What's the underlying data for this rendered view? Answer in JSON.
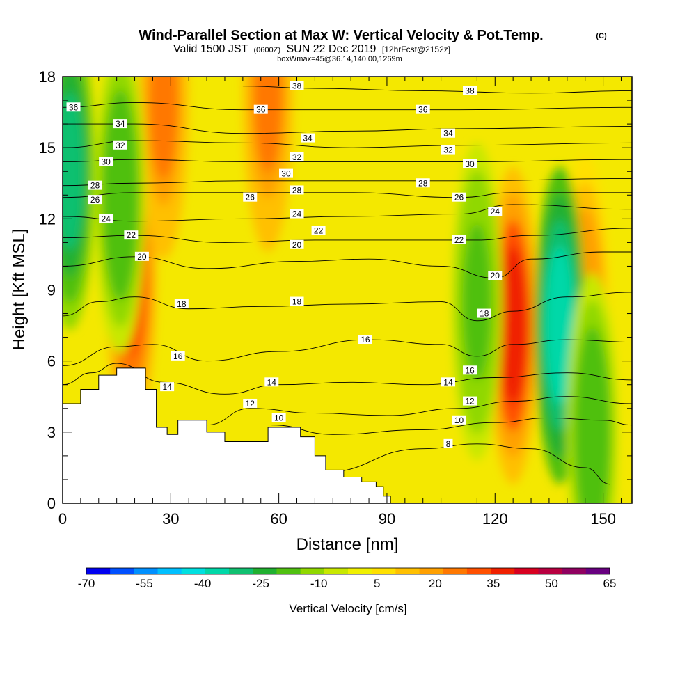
{
  "title": {
    "main": "Wind-Parallel Section at Max W: Vertical Velocity & Pot.Temp.",
    "copyright": "(C)",
    "valid_prefix": "Valid 1500 JST",
    "valid_utc": "(0600Z)",
    "valid_date": "SUN 22 Dec 2019",
    "forecast": "[12hrFcst@2152z]",
    "box_info": "boxWmax=45@36.14,140.00,1269m"
  },
  "chart_data": {
    "type": "heatmap",
    "xlabel": "Distance [nm]",
    "ylabel": "Height [Kft MSL]",
    "xlim": [
      0,
      158
    ],
    "ylim": [
      0,
      18
    ],
    "x_ticks": [
      0,
      30,
      60,
      90,
      120,
      150
    ],
    "y_ticks": [
      0,
      3,
      6,
      9,
      12,
      15,
      18
    ],
    "grid": false,
    "colorbar": {
      "label": "Vertical Velocity [cm/s]",
      "placement": "bottom",
      "tick_labels": [
        "-70",
        "-55",
        "-40",
        "-25",
        "-10",
        "5",
        "20",
        "35",
        "50",
        "65"
      ],
      "colors": [
        "#0000f0",
        "#0050ff",
        "#0090ff",
        "#00c0ff",
        "#00e0e0",
        "#00d8a8",
        "#10c070",
        "#20b030",
        "#50c010",
        "#90d800",
        "#c8e800",
        "#f0f000",
        "#ffe000",
        "#ffc000",
        "#ffa000",
        "#ff7800",
        "#ff5000",
        "#f02000",
        "#d80020",
        "#b80040",
        "#900060",
        "#680080"
      ]
    },
    "terrain_kft": [
      [
        0,
        4.2
      ],
      [
        5,
        4.8
      ],
      [
        10,
        5.4
      ],
      [
        15,
        5.7
      ],
      [
        20,
        5.7
      ],
      [
        23,
        4.8
      ],
      [
        26,
        3.2
      ],
      [
        29,
        2.9
      ],
      [
        32,
        3.5
      ],
      [
        36,
        3.5
      ],
      [
        40,
        3.0
      ],
      [
        45,
        2.6
      ],
      [
        50,
        2.6
      ],
      [
        55,
        2.6
      ],
      [
        57,
        3.2
      ],
      [
        62,
        3.2
      ],
      [
        66,
        2.8
      ],
      [
        70,
        2.0
      ],
      [
        73,
        1.4
      ],
      [
        78,
        1.1
      ],
      [
        83,
        0.9
      ],
      [
        87,
        0.7
      ],
      [
        89,
        0.3
      ],
      [
        91,
        0.3
      ]
    ],
    "updraft_cores": [
      {
        "x": 19,
        "y": 9.5,
        "w_cm_s": 40
      },
      {
        "x": 28,
        "y": 17.0,
        "w_cm_s": 30
      },
      {
        "x": 57,
        "y": 17.3,
        "w_cm_s": 30
      },
      {
        "x": 125,
        "y": 7.5,
        "w_cm_s": 45
      },
      {
        "x": 145,
        "y": 8.0,
        "w_cm_s": 25
      }
    ],
    "downdraft_cores": [
      {
        "x": 2,
        "y": 14.0,
        "w_cm_s": -40
      },
      {
        "x": 16,
        "y": 13.0,
        "w_cm_s": -25
      },
      {
        "x": 115,
        "y": 8.5,
        "w_cm_s": -20
      },
      {
        "x": 138,
        "y": 7.5,
        "w_cm_s": -45
      },
      {
        "x": 147,
        "y": 3.0,
        "w_cm_s": -25
      }
    ],
    "theta_contours": [
      {
        "label": "8",
        "level": 8,
        "points": [
          [
            72,
            1.3
          ],
          [
            100,
            2.3
          ],
          [
            115,
            2.5
          ],
          [
            130,
            2.3
          ],
          [
            145,
            1.5
          ],
          [
            152,
            0.8
          ]
        ]
      },
      {
        "label": "10",
        "level": 10,
        "points": [
          [
            58,
            3.3
          ],
          [
            75,
            2.9
          ],
          [
            100,
            3.1
          ],
          [
            120,
            3.4
          ],
          [
            135,
            3.6
          ],
          [
            150,
            3.5
          ],
          [
            158,
            3.3
          ]
        ]
      },
      {
        "label": "12",
        "level": 12,
        "points": [
          [
            40,
            3.3
          ],
          [
            52,
            4.0
          ],
          [
            70,
            3.8
          ],
          [
            90,
            3.7
          ],
          [
            110,
            4.0
          ],
          [
            125,
            4.3
          ],
          [
            140,
            4.5
          ],
          [
            158,
            4.2
          ]
        ]
      },
      {
        "label": "14",
        "level": 14,
        "points": [
          [
            0,
            5.0
          ],
          [
            8,
            5.5
          ],
          [
            15,
            5.9
          ],
          [
            28,
            5.1
          ],
          [
            45,
            4.6
          ],
          [
            60,
            5.0
          ],
          [
            80,
            5.1
          ],
          [
            100,
            5.0
          ],
          [
            120,
            5.3
          ],
          [
            140,
            5.5
          ],
          [
            158,
            5.2
          ]
        ]
      },
      {
        "label": "16",
        "level": 16,
        "points": [
          [
            0,
            5.8
          ],
          [
            15,
            6.6
          ],
          [
            25,
            6.7
          ],
          [
            40,
            6.0
          ],
          [
            60,
            6.4
          ],
          [
            85,
            6.9
          ],
          [
            105,
            6.7
          ],
          [
            115,
            6.2
          ],
          [
            125,
            6.7
          ],
          [
            140,
            6.9
          ],
          [
            158,
            6.8
          ]
        ]
      },
      {
        "label": "18",
        "level": 18,
        "points": [
          [
            0,
            7.9
          ],
          [
            10,
            8.5
          ],
          [
            20,
            8.7
          ],
          [
            35,
            8.2
          ],
          [
            55,
            8.3
          ],
          [
            80,
            8.4
          ],
          [
            105,
            8.5
          ],
          [
            115,
            7.7
          ],
          [
            125,
            8.1
          ],
          [
            140,
            8.7
          ],
          [
            158,
            8.9
          ]
        ]
      },
      {
        "label": "20",
        "level": 20,
        "points": [
          [
            0,
            10.0
          ],
          [
            20,
            10.4
          ],
          [
            40,
            9.9
          ],
          [
            65,
            10.2
          ],
          [
            85,
            10.3
          ],
          [
            105,
            10.0
          ],
          [
            120,
            9.5
          ],
          [
            130,
            10.3
          ],
          [
            150,
            10.6
          ],
          [
            158,
            10.6
          ]
        ]
      },
      {
        "label": "22",
        "level": 22,
        "points": [
          [
            0,
            11.2
          ],
          [
            20,
            11.3
          ],
          [
            45,
            11.0
          ],
          [
            70,
            11.1
          ],
          [
            95,
            11.1
          ],
          [
            115,
            11.1
          ],
          [
            130,
            11.3
          ],
          [
            158,
            11.6
          ]
        ]
      },
      {
        "label": "24",
        "level": 24,
        "points": [
          [
            0,
            12.1
          ],
          [
            20,
            11.9
          ],
          [
            50,
            12.0
          ],
          [
            80,
            12.1
          ],
          [
            110,
            12.2
          ],
          [
            125,
            12.6
          ],
          [
            158,
            12.4
          ]
        ]
      },
      {
        "label": "26",
        "level": 26,
        "points": [
          [
            0,
            12.9
          ],
          [
            20,
            13.1
          ],
          [
            50,
            13.1
          ],
          [
            80,
            13.1
          ],
          [
            110,
            12.9
          ],
          [
            125,
            13.1
          ],
          [
            158,
            13.1
          ]
        ]
      },
      {
        "label": "28",
        "level": 28,
        "points": [
          [
            0,
            13.4
          ],
          [
            20,
            13.5
          ],
          [
            50,
            13.6
          ],
          [
            80,
            13.6
          ],
          [
            110,
            13.6
          ],
          [
            158,
            13.7
          ]
        ]
      },
      {
        "label": "30",
        "level": 30,
        "points": [
          [
            0,
            14.4
          ],
          [
            20,
            14.5
          ],
          [
            50,
            14.4
          ],
          [
            80,
            14.4
          ],
          [
            110,
            14.4
          ],
          [
            158,
            14.5
          ]
        ]
      },
      {
        "label": "32",
        "level": 32,
        "points": [
          [
            0,
            15.0
          ],
          [
            20,
            15.3
          ],
          [
            50,
            15.2
          ],
          [
            80,
            15.0
          ],
          [
            110,
            15.1
          ],
          [
            158,
            15.2
          ]
        ]
      },
      {
        "label": "34",
        "level": 34,
        "points": [
          [
            0,
            16.0
          ],
          [
            20,
            16.0
          ],
          [
            50,
            15.6
          ],
          [
            80,
            15.7
          ],
          [
            110,
            15.8
          ],
          [
            158,
            15.9
          ]
        ]
      },
      {
        "label": "36",
        "level": 36,
        "points": [
          [
            0,
            16.7
          ],
          [
            20,
            16.9
          ],
          [
            50,
            16.6
          ],
          [
            80,
            16.6
          ],
          [
            110,
            16.6
          ],
          [
            158,
            16.7
          ]
        ]
      },
      {
        "label": "38",
        "level": 38,
        "points": [
          [
            50,
            17.6
          ],
          [
            70,
            17.5
          ],
          [
            100,
            17.4
          ],
          [
            130,
            17.3
          ],
          [
            158,
            17.4
          ]
        ]
      }
    ],
    "contour_labels": [
      {
        "text": "36",
        "x": 3,
        "y": 16.7
      },
      {
        "text": "34",
        "x": 16,
        "y": 16.0
      },
      {
        "text": "32",
        "x": 16,
        "y": 15.1
      },
      {
        "text": "30",
        "x": 12,
        "y": 14.4
      },
      {
        "text": "28",
        "x": 9,
        "y": 13.4
      },
      {
        "text": "26",
        "x": 9,
        "y": 12.8
      },
      {
        "text": "24",
        "x": 12,
        "y": 12.0
      },
      {
        "text": "22",
        "x": 19,
        "y": 11.3
      },
      {
        "text": "20",
        "x": 22,
        "y": 10.4
      },
      {
        "text": "18",
        "x": 33,
        "y": 8.4
      },
      {
        "text": "16",
        "x": 32,
        "y": 6.2
      },
      {
        "text": "14",
        "x": 29,
        "y": 4.9
      },
      {
        "text": "38",
        "x": 65,
        "y": 17.6
      },
      {
        "text": "36",
        "x": 55,
        "y": 16.6
      },
      {
        "text": "34",
        "x": 68,
        "y": 15.4
      },
      {
        "text": "32",
        "x": 65,
        "y": 14.6
      },
      {
        "text": "30",
        "x": 62,
        "y": 13.9
      },
      {
        "text": "28",
        "x": 65,
        "y": 13.2
      },
      {
        "text": "26",
        "x": 52,
        "y": 12.9
      },
      {
        "text": "24",
        "x": 65,
        "y": 12.2
      },
      {
        "text": "22",
        "x": 71,
        "y": 11.5
      },
      {
        "text": "20",
        "x": 65,
        "y": 10.9
      },
      {
        "text": "18",
        "x": 65,
        "y": 8.5
      },
      {
        "text": "16",
        "x": 84,
        "y": 6.9
      },
      {
        "text": "14",
        "x": 58,
        "y": 5.1
      },
      {
        "text": "12",
        "x": 52,
        "y": 4.2
      },
      {
        "text": "10",
        "x": 60,
        "y": 3.6
      },
      {
        "text": "38",
        "x": 113,
        "y": 17.4
      },
      {
        "text": "36",
        "x": 100,
        "y": 16.6
      },
      {
        "text": "34",
        "x": 107,
        "y": 15.6
      },
      {
        "text": "32",
        "x": 107,
        "y": 14.9
      },
      {
        "text": "30",
        "x": 113,
        "y": 14.3
      },
      {
        "text": "28",
        "x": 100,
        "y": 13.5
      },
      {
        "text": "26",
        "x": 110,
        "y": 12.9
      },
      {
        "text": "24",
        "x": 120,
        "y": 12.3
      },
      {
        "text": "22",
        "x": 110,
        "y": 11.1
      },
      {
        "text": "20",
        "x": 120,
        "y": 9.6
      },
      {
        "text": "18",
        "x": 117,
        "y": 8.0
      },
      {
        "text": "16",
        "x": 113,
        "y": 5.6
      },
      {
        "text": "14",
        "x": 107,
        "y": 5.1
      },
      {
        "text": "12",
        "x": 113,
        "y": 4.3
      },
      {
        "text": "10",
        "x": 110,
        "y": 3.5
      },
      {
        "text": "8",
        "x": 107,
        "y": 2.5
      }
    ]
  }
}
